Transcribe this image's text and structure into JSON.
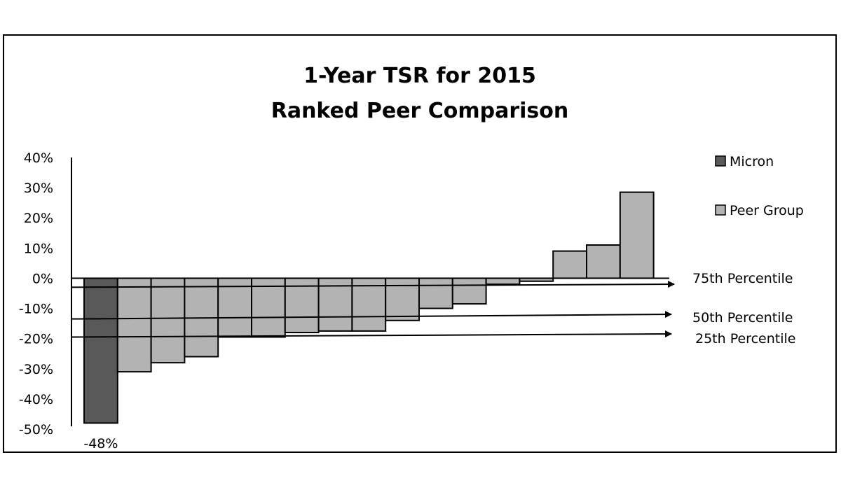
{
  "chart_data": {
    "type": "bar",
    "title": "1-Year TSR for 2015",
    "subtitle": "Ranked Peer Comparison",
    "xlabel": "",
    "ylabel": "",
    "ylim": [
      -0.5,
      0.4
    ],
    "yticks": [
      {
        "value": 0.4,
        "label": "40%"
      },
      {
        "value": 0.3,
        "label": "30%"
      },
      {
        "value": 0.2,
        "label": "20%"
      },
      {
        "value": 0.1,
        "label": "10%"
      },
      {
        "value": 0.0,
        "label": "0%"
      },
      {
        "value": -0.1,
        "label": "-10%"
      },
      {
        "value": -0.2,
        "label": "-20%"
      },
      {
        "value": -0.3,
        "label": "-30%"
      },
      {
        "value": -0.4,
        "label": "-40%"
      },
      {
        "value": -0.5,
        "label": "-50%"
      }
    ],
    "grid": false,
    "legend_position": "right",
    "series": [
      {
        "name": "Micron",
        "color": "#595959"
      },
      {
        "name": "Peer Group",
        "color": "#b3b3b3"
      }
    ],
    "bars": [
      {
        "series": "Micron",
        "value": -0.48,
        "label": "-48%"
      },
      {
        "series": "Peer Group",
        "value": -0.31
      },
      {
        "series": "Peer Group",
        "value": -0.28
      },
      {
        "series": "Peer Group",
        "value": -0.26
      },
      {
        "series": "Peer Group",
        "value": -0.195
      },
      {
        "series": "Peer Group",
        "value": -0.195
      },
      {
        "series": "Peer Group",
        "value": -0.18
      },
      {
        "series": "Peer Group",
        "value": -0.175
      },
      {
        "series": "Peer Group",
        "value": -0.175
      },
      {
        "series": "Peer Group",
        "value": -0.14
      },
      {
        "series": "Peer Group",
        "value": -0.1
      },
      {
        "series": "Peer Group",
        "value": -0.085
      },
      {
        "series": "Peer Group",
        "value": -0.02
      },
      {
        "series": "Peer Group",
        "value": -0.01
      },
      {
        "series": "Peer Group",
        "value": 0.09
      },
      {
        "series": "Peer Group",
        "value": 0.11
      },
      {
        "series": "Peer Group",
        "value": 0.285
      }
    ],
    "annotations": [
      {
        "label": "75th Percentile",
        "value": -0.03
      },
      {
        "label": "50th Percentile",
        "value": -0.135
      },
      {
        "label": "25th Percentile",
        "value": -0.195
      }
    ]
  }
}
